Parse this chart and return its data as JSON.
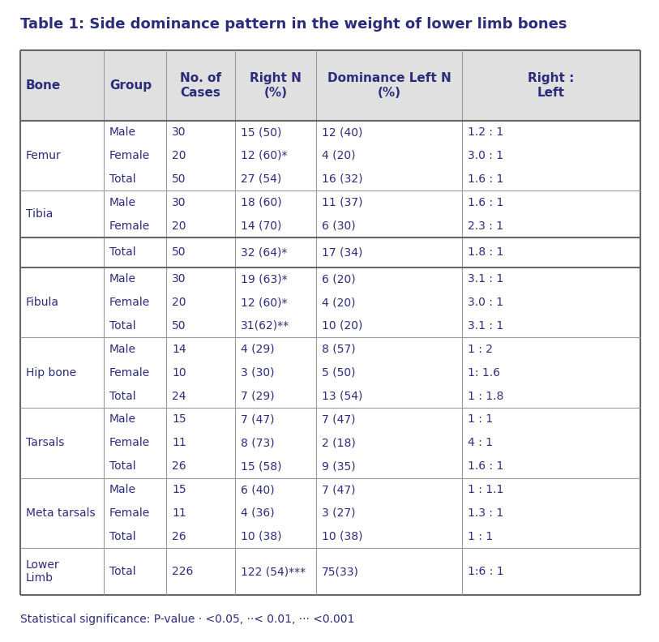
{
  "title": "Table 1: Side dominance pattern in the weight of lower limb bones",
  "title_fontsize": 13,
  "footer": "Statistical significance: P-value · <0.05, ··< 0.01, ··· <0.001",
  "footer_fontsize": 10,
  "col_headers": [
    "Bone",
    "Group",
    "No. of\nCases",
    "Right N\n(%)",
    "Dominance Left N\n(%)",
    "Right :\nLeft"
  ],
  "rows": [
    {
      "bone": "Femur",
      "nrows": 3,
      "group": [
        "Male",
        "Female",
        "Total"
      ],
      "cases": [
        "30",
        "20",
        "50"
      ],
      "right": [
        "15 (50)",
        "12 (60)*",
        "27 (54)"
      ],
      "left": [
        "12 (40)",
        "4 (20)",
        "16 (32)"
      ],
      "ratio": [
        "1.2 : 1",
        "3.0 : 1",
        "1.6 : 1"
      ]
    },
    {
      "bone": "Tibia",
      "nrows": 2,
      "group": [
        "Male",
        "Female"
      ],
      "cases": [
        "30",
        "20"
      ],
      "right": [
        "18 (60)",
        "14 (70)"
      ],
      "left": [
        "11 (37)",
        "6 (30)"
      ],
      "ratio": [
        "1.6 : 1",
        "2.3 : 1"
      ]
    },
    {
      "bone": "",
      "nrows": 1,
      "group": [
        "Total"
      ],
      "cases": [
        "50"
      ],
      "right": [
        "32 (64)*"
      ],
      "left": [
        "17 (34)"
      ],
      "ratio": [
        "1.8 : 1"
      ],
      "thick_top": true,
      "thick_bottom": true
    },
    {
      "bone": "Fibula",
      "nrows": 3,
      "group": [
        "Male",
        "Female",
        "Total"
      ],
      "cases": [
        "30",
        "20",
        "50"
      ],
      "right": [
        "19 (63)*",
        "12 (60)*",
        "31(62)**"
      ],
      "left": [
        "6 (20)",
        "4 (20)",
        "10 (20)"
      ],
      "ratio": [
        "3.1 : 1",
        "3.0 : 1",
        "3.1 : 1"
      ]
    },
    {
      "bone": "Hip bone",
      "nrows": 3,
      "group": [
        "Male",
        "Female",
        "Total"
      ],
      "cases": [
        "14",
        "10",
        "24"
      ],
      "right": [
        "4 (29)",
        "3 (30)",
        "7 (29)"
      ],
      "left": [
        "8 (57)",
        "5 (50)",
        "13 (54)"
      ],
      "ratio": [
        "1 : 2",
        "1: 1.6",
        "1 : 1.8"
      ]
    },
    {
      "bone": "Tarsals",
      "nrows": 3,
      "group": [
        "Male",
        "Female",
        "Total"
      ],
      "cases": [
        "15",
        "11",
        "26"
      ],
      "right": [
        "7 (47)",
        "8 (73)",
        "15 (58)"
      ],
      "left": [
        "7 (47)",
        "2 (18)",
        "9 (35)"
      ],
      "ratio": [
        "1 : 1",
        "4 : 1",
        "1.6 : 1"
      ]
    },
    {
      "bone": "Meta tarsals",
      "nrows": 3,
      "group": [
        "Male",
        "Female",
        "Total"
      ],
      "cases": [
        "15",
        "11",
        "26"
      ],
      "right": [
        "6 (40)",
        "4 (36)",
        "10 (38)"
      ],
      "left": [
        "7 (47)",
        "3 (27)",
        "10 (38)"
      ],
      "ratio": [
        "1 : 1.1",
        "1.3 : 1",
        "1 : 1"
      ]
    },
    {
      "bone": "Lower\nLimb",
      "nrows": 1,
      "group": [
        "Total"
      ],
      "cases": [
        "226"
      ],
      "right": [
        "122 (54)***"
      ],
      "left": [
        "75(33)"
      ],
      "ratio": [
        "1:6 : 1"
      ],
      "bone_multiline": true
    }
  ],
  "header_bg": "#e0e0e0",
  "bg_color": "#ffffff",
  "text_color": "#2c2c7c",
  "border_color": "#999999",
  "thick_border_color": "#666666",
  "body_fontsize": 10,
  "header_fontsize": 11
}
